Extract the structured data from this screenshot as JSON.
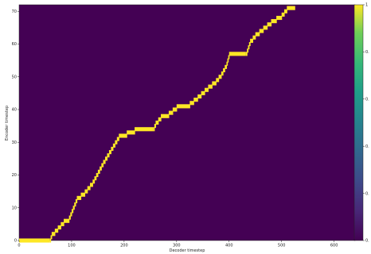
{
  "chart_data": {
    "type": "heatmap",
    "title": "",
    "xlabel": "Decoder timestep",
    "ylabel": "Encoder timestep",
    "xlim": [
      0,
      640
    ],
    "ylim": [
      0,
      72
    ],
    "xticks": [
      0,
      100,
      200,
      300,
      400,
      500,
      600
    ],
    "yticks": [
      0,
      10,
      20,
      30,
      40,
      50,
      60,
      70
    ],
    "colorbar": {
      "min": 0,
      "max": 1,
      "ticks": [
        "1",
        "0.",
        "0.",
        "0.",
        "0.",
        "0."
      ],
      "colormap": "viridis"
    },
    "colors": {
      "background": "#440154",
      "high": "#fde725"
    },
    "alignment_path": [
      [
        0,
        0
      ],
      [
        58,
        0
      ],
      [
        62,
        2
      ],
      [
        68,
        3
      ],
      [
        85,
        6
      ],
      [
        95,
        7
      ],
      [
        110,
        13
      ],
      [
        125,
        15
      ],
      [
        140,
        18
      ],
      [
        160,
        24
      ],
      [
        175,
        28
      ],
      [
        190,
        32
      ],
      [
        205,
        33
      ],
      [
        220,
        34
      ],
      [
        255,
        34
      ],
      [
        260,
        36
      ],
      [
        270,
        38
      ],
      [
        285,
        39
      ],
      [
        300,
        41
      ],
      [
        325,
        42
      ],
      [
        340,
        44
      ],
      [
        360,
        47
      ],
      [
        375,
        49
      ],
      [
        385,
        51
      ],
      [
        395,
        54
      ],
      [
        400,
        57
      ],
      [
        432,
        57
      ],
      [
        440,
        61
      ],
      [
        450,
        63
      ],
      [
        465,
        65
      ],
      [
        480,
        67
      ],
      [
        500,
        69
      ],
      [
        510,
        71
      ],
      [
        525,
        72
      ]
    ]
  }
}
